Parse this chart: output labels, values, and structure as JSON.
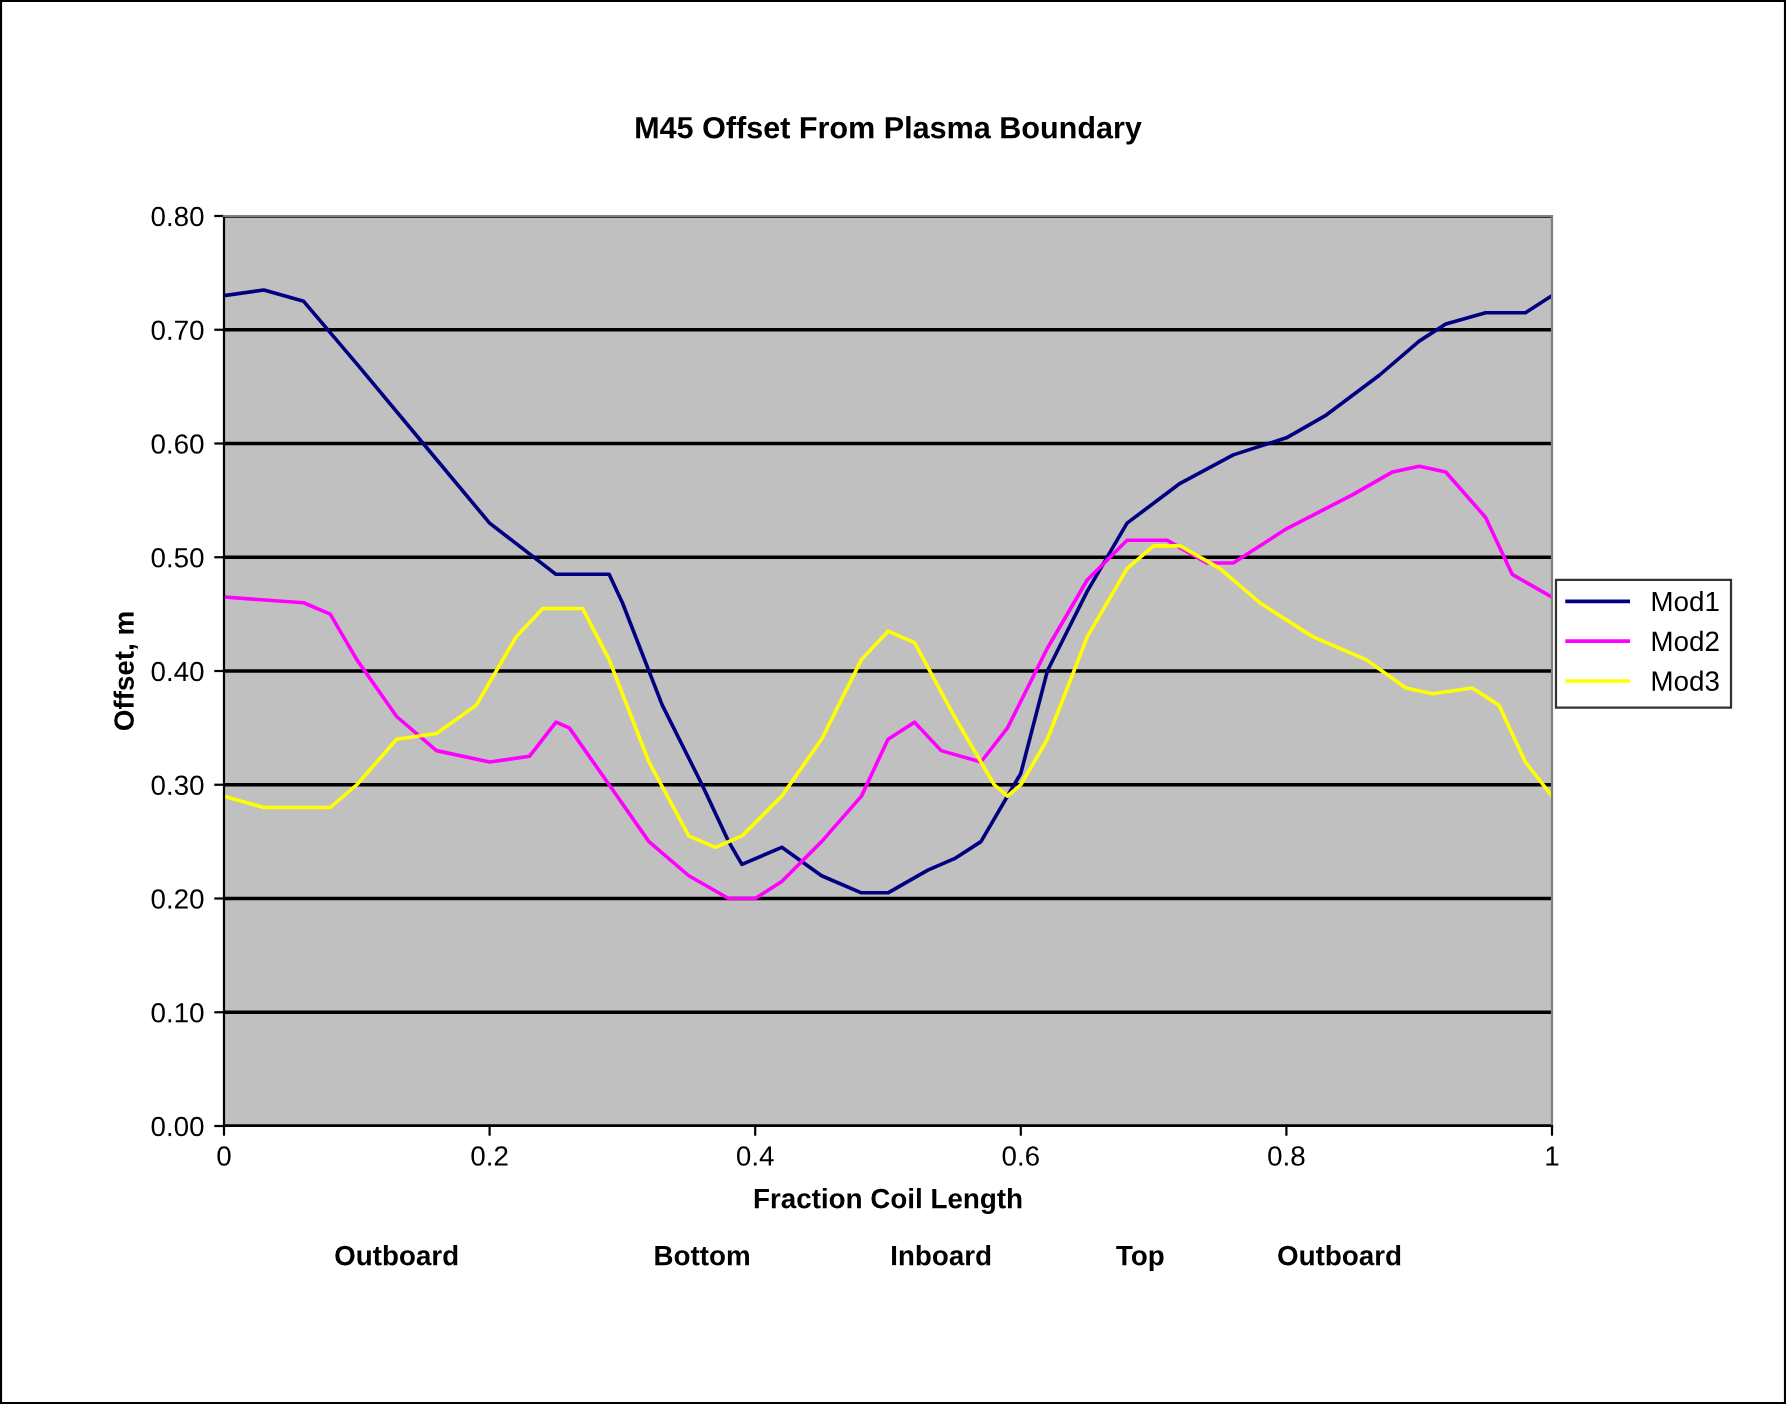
{
  "chart_data": {
    "type": "line",
    "title": "M45 Offset From Plasma Boundary",
    "xlabel": "Fraction Coil Length",
    "ylabel": "Offset, m",
    "annotations": [
      "Outboard",
      "Bottom",
      "Inboard",
      "Top",
      "Outboard"
    ],
    "xlim": [
      0,
      1
    ],
    "xticks": [
      0,
      0.2,
      0.4,
      0.6,
      0.8,
      1
    ],
    "ylim": [
      0,
      0.8
    ],
    "yticks": [
      {
        "value": 0,
        "label": "0.00"
      },
      {
        "value": 0.1,
        "label": "0.10"
      },
      {
        "value": 0.2,
        "label": "0.20"
      },
      {
        "value": 0.3,
        "label": "0.30"
      },
      {
        "value": 0.4,
        "label": "0.40"
      },
      {
        "value": 0.5,
        "label": "0.50"
      },
      {
        "value": 0.6,
        "label": "0.60"
      },
      {
        "value": 0.7,
        "label": "0.70"
      },
      {
        "value": 0.8,
        "label": "0.80"
      }
    ],
    "grid": "y",
    "legend": "right",
    "marker": "none",
    "line_style": "solid",
    "series": [
      {
        "name": "Mod1",
        "color": "#000080",
        "x": [
          0,
          0.03,
          0.06,
          0.1,
          0.15,
          0.2,
          0.25,
          0.29,
          0.3,
          0.33,
          0.36,
          0.38,
          0.39,
          0.42,
          0.45,
          0.48,
          0.5,
          0.53,
          0.55,
          0.57,
          0.6,
          0.62,
          0.65,
          0.68,
          0.72,
          0.76,
          0.8,
          0.83,
          0.87,
          0.9,
          0.92,
          0.95,
          0.98,
          1.0
        ],
        "values": [
          0.73,
          0.735,
          0.725,
          0.67,
          0.6,
          0.53,
          0.485,
          0.485,
          0.46,
          0.37,
          0.3,
          0.25,
          0.23,
          0.245,
          0.22,
          0.205,
          0.205,
          0.225,
          0.235,
          0.25,
          0.31,
          0.4,
          0.47,
          0.53,
          0.565,
          0.59,
          0.605,
          0.625,
          0.66,
          0.69,
          0.705,
          0.715,
          0.715,
          0.73
        ]
      },
      {
        "name": "Mod2",
        "color": "#ff00ff",
        "x": [
          0,
          0.06,
          0.08,
          0.1,
          0.13,
          0.16,
          0.2,
          0.23,
          0.25,
          0.26,
          0.29,
          0.32,
          0.35,
          0.38,
          0.4,
          0.42,
          0.45,
          0.48,
          0.5,
          0.52,
          0.54,
          0.57,
          0.59,
          0.62,
          0.65,
          0.68,
          0.71,
          0.74,
          0.76,
          0.8,
          0.85,
          0.88,
          0.9,
          0.92,
          0.95,
          0.97,
          1.0
        ],
        "values": [
          0.465,
          0.46,
          0.45,
          0.41,
          0.36,
          0.33,
          0.32,
          0.325,
          0.355,
          0.35,
          0.3,
          0.25,
          0.22,
          0.2,
          0.2,
          0.215,
          0.25,
          0.29,
          0.34,
          0.355,
          0.33,
          0.32,
          0.35,
          0.42,
          0.48,
          0.515,
          0.515,
          0.495,
          0.495,
          0.525,
          0.555,
          0.575,
          0.58,
          0.575,
          0.535,
          0.485,
          0.465
        ]
      },
      {
        "name": "Mod3",
        "color": "#ffff00",
        "x": [
          0,
          0.03,
          0.08,
          0.1,
          0.13,
          0.16,
          0.19,
          0.22,
          0.24,
          0.27,
          0.29,
          0.32,
          0.35,
          0.37,
          0.39,
          0.42,
          0.45,
          0.48,
          0.5,
          0.52,
          0.55,
          0.58,
          0.59,
          0.6,
          0.62,
          0.65,
          0.68,
          0.7,
          0.72,
          0.75,
          0.78,
          0.82,
          0.86,
          0.89,
          0.91,
          0.94,
          0.96,
          0.98,
          1.0
        ],
        "values": [
          0.29,
          0.28,
          0.28,
          0.3,
          0.34,
          0.345,
          0.37,
          0.43,
          0.455,
          0.455,
          0.41,
          0.32,
          0.255,
          0.245,
          0.255,
          0.29,
          0.34,
          0.41,
          0.435,
          0.425,
          0.36,
          0.3,
          0.29,
          0.3,
          0.34,
          0.43,
          0.49,
          0.51,
          0.51,
          0.49,
          0.46,
          0.43,
          0.41,
          0.385,
          0.38,
          0.385,
          0.37,
          0.32,
          0.29
        ]
      }
    ]
  }
}
